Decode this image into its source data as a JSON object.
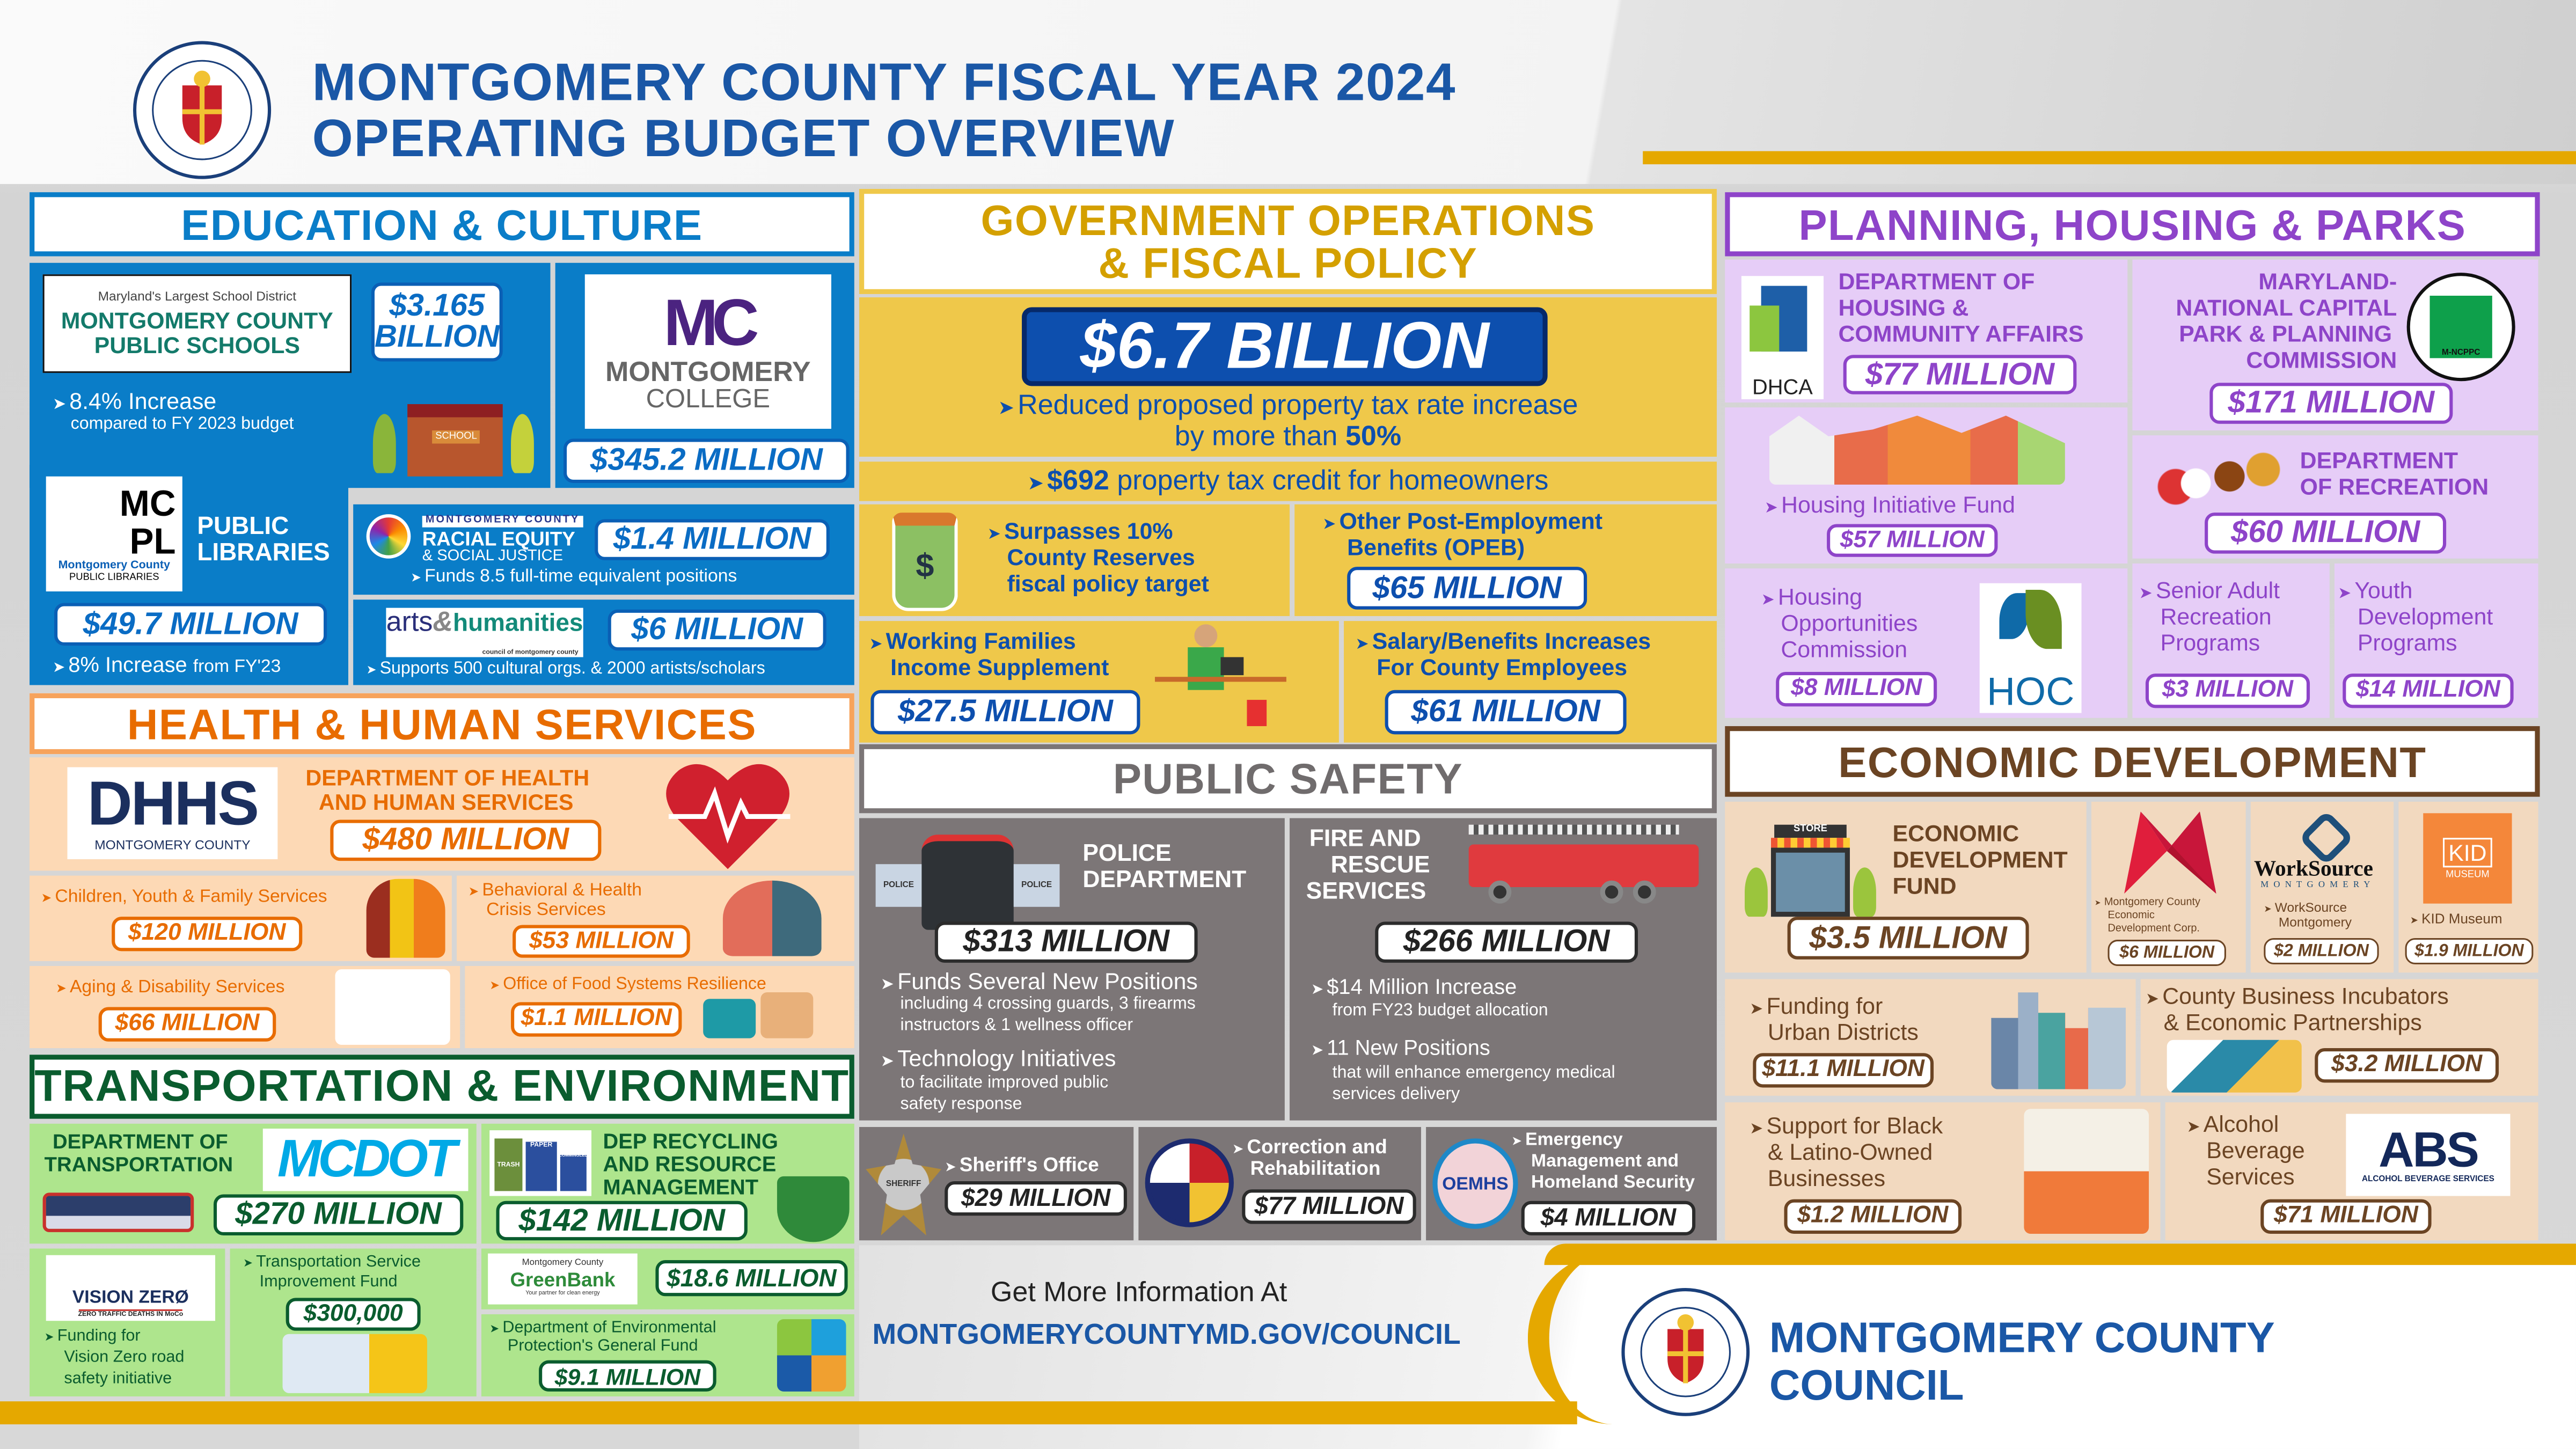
{
  "header": {
    "title_line1": "MONTGOMERY COUNTY FISCAL YEAR 2024",
    "title_line2": "OPERATING BUDGET OVERVIEW",
    "seal_text": "MONTGOMERY COUNTY MARYLAND 1776"
  },
  "colors": {
    "title": "#1a57a6",
    "education": "#0a7dc8",
    "government": "#efc84a",
    "planning": "#e6cdf7",
    "health": "#fdd9b5",
    "transportation": "#aee58d",
    "public_safety": "#7c7676",
    "economic": "#f2d9bf",
    "footer_gold": "#e5a800"
  },
  "education": {
    "title": "EDUCATION & CULTURE",
    "mcps": {
      "tagline": "Maryland's Largest School District",
      "logo_line1": "MONTGOMERY COUNTY",
      "logo_line2": "PUBLIC SCHOOLS",
      "value_line1": "$3.165",
      "value_line2": "BILLION",
      "note": "8.4% Increase",
      "subnote": "compared to FY 2023 budget",
      "school_sign": "SCHOOL"
    },
    "college": {
      "logo_mark": "MC",
      "logo_line1": "MONTGOMERY",
      "logo_line2": "COLLEGE",
      "value": "$345.2 MILLION"
    },
    "libraries": {
      "logo_mark1": "MC",
      "logo_mark2": "PL",
      "logo_sub1": "Montgomery County",
      "logo_sub2": "PUBLIC LIBRARIES",
      "label_line1": "PUBLIC",
      "label_line2": "LIBRARIES",
      "value": "$49.7 MILLION",
      "note": "8% Increase",
      "note_suffix": "from FY'23"
    },
    "racial_equity": {
      "logo_line1": "MONTGOMERY COUNTY",
      "logo_line2": "RACIAL EQUITY",
      "logo_line3": "& SOCIAL JUSTICE",
      "value": "$1.4 MILLION",
      "note": "Funds 8.5 full-time equivalent positions"
    },
    "arts": {
      "logo_text1": "arts",
      "logo_text2": "humanities",
      "logo_sub": "council of montgomery county",
      "value": "$6 MILLION",
      "note": "Supports 500 cultural orgs. & 2000 artists/scholars"
    }
  },
  "health": {
    "title": "HEALTH & HUMAN SERVICES",
    "dhhs": {
      "logo_mark": "DHHS",
      "logo_sub": "MONTGOMERY COUNTY",
      "label_line1": "DEPARTMENT OF HEALTH",
      "label_line2": "AND HUMAN SERVICES",
      "value": "$480 MILLION"
    },
    "children": {
      "label": "Children, Youth & Family Services",
      "value": "$120 MILLION"
    },
    "behavioral": {
      "label_line1": "Behavioral & Health",
      "label_line2": "Crisis Services",
      "value": "$53 MILLION"
    },
    "aging": {
      "label": "Aging & Disability Services",
      "value": "$66 MILLION"
    },
    "food": {
      "label": "Office of Food Systems Resilience",
      "value": "$1.1 MILLION"
    }
  },
  "transportation": {
    "title": "TRANSPORTATION & ENVIRONMENT",
    "mcdot": {
      "label_line1": "DEPARTMENT OF",
      "label_line2": "TRANSPORTATION",
      "logo": "MCDOT",
      "value": "$270 MILLION"
    },
    "recycling": {
      "label_line1": "DEP RECYCLING",
      "label_line2": "AND RESOURCE",
      "label_line3": "MANAGEMENT",
      "value": "$142 MILLION",
      "bin1": "TRASH",
      "bin2": "PAPER",
      "bin3": "COMMINGLED"
    },
    "vision_zero": {
      "logo": "VISION ZERØ",
      "logo_sub": "ZERO TRAFFIC DEATHS IN MoCo",
      "label_line1": "Funding for",
      "label_line2": "Vision Zero road",
      "label_line3": "safety initiative"
    },
    "tsif": {
      "label_line1": "Transportation Service",
      "label_line2": "Improvement Fund",
      "value": "$300,000"
    },
    "greenbank": {
      "logo_top": "Montgomery County",
      "logo_main": "GreenBank",
      "logo_sub": "Your partner for clean energy",
      "value": "$18.6 MILLION"
    },
    "dep_general": {
      "label_line1": "Department of Environmental",
      "label_line2": "Protection's General Fund",
      "value": "$9.1 MILLION"
    }
  },
  "government": {
    "title_line1": "GOVERNMENT OPERATIONS",
    "title_line2": "& FISCAL POLICY",
    "total": "$6.7 BILLION",
    "tax_line1": "Reduced proposed property tax rate increase",
    "tax_line2_prefix": "by more than ",
    "tax_line2_bold": "50%",
    "credit_bold": "$692",
    "credit_rest": " property tax credit for homeowners",
    "reserves": {
      "line1": "Surpasses 10%",
      "line2": "County Reserves",
      "line3": "fiscal policy target"
    },
    "opeb": {
      "line1": "Other Post-Employment",
      "line2": "Benefits (OPEB)",
      "value": "$65 MILLION"
    },
    "wfis": {
      "line1": "Working Families",
      "line2": "Income Supplement",
      "value": "$27.5 MILLION"
    },
    "salary": {
      "line1": "Salary/Benefits Increases",
      "line2": "For County Employees",
      "value": "$61 MILLION"
    }
  },
  "public_safety": {
    "title": "PUBLIC SAFETY",
    "police": {
      "label_line1": "POLICE",
      "label_line2": "DEPARTMENT",
      "value": "$313 MILLION",
      "b1_title": "Funds Several New Positions",
      "b1_line1": "including 4 crossing guards, 3 firearms",
      "b1_line2": "instructors & 1 wellness officer",
      "b2_title": "Technology Initiatives",
      "b2_line1": "to facilitate improved public",
      "b2_line2": "safety response",
      "car_text": "POLICE"
    },
    "fire": {
      "label_line1": "FIRE AND",
      "label_line2": "RESCUE",
      "label_line3": "SERVICES",
      "value": "$266 MILLION",
      "b1_title": "$14 Million Increase",
      "b1_line1": "from FY23 budget allocation",
      "b2_title": "11 New Positions",
      "b2_line1": "that will enhance emergency medical",
      "b2_line2": "services delivery"
    },
    "sheriff": {
      "label": "Sheriff's Office",
      "value": "$29 MILLION",
      "badge": "SHERIFF"
    },
    "correction": {
      "label_line1": "Correction and",
      "label_line2": "Rehabilitation",
      "value": "$77 MILLION"
    },
    "oemhs": {
      "label_line1": "Emergency",
      "label_line2": "Management and",
      "label_line3": "Homeland Security",
      "value": "$4 MILLION",
      "logo": "OEMHS"
    }
  },
  "planning": {
    "title": "PLANNING, HOUSING & PARKS",
    "dhca": {
      "logo": "DHCA",
      "label_line1": "DEPARTMENT OF",
      "label_line2": "HOUSING &",
      "label_line3": "COMMUNITY AFFAIRS",
      "value": "$77 MILLION"
    },
    "mncppc": {
      "label_line1": "MARYLAND-",
      "label_line2": "NATIONAL CAPITAL",
      "label_line3": "PARK & PLANNING",
      "label_line4": "COMMISSION",
      "logo": "M-NCPPC",
      "value": "$171 MILLION"
    },
    "hif": {
      "label": "Housing Initiative Fund",
      "value": "$57 MILLION"
    },
    "recreation": {
      "label_line1": "DEPARTMENT",
      "label_line2": "OF RECREATION",
      "value": "$60 MILLION"
    },
    "hoc": {
      "label_line1": "Housing",
      "label_line2": "Opportunities",
      "label_line3": "Commission",
      "value": "$8 MILLION",
      "logo": "HOC"
    },
    "senior": {
      "label_line1": "Senior Adult",
      "label_line2": "Recreation",
      "label_line3": "Programs",
      "value": "$3 MILLION"
    },
    "youth": {
      "label_line1": "Youth",
      "label_line2": "Development",
      "label_line3": "Programs",
      "value": "$14 MILLION"
    }
  },
  "economic": {
    "title": "ECONOMIC DEVELOPMENT",
    "edf": {
      "label_line1": "ECONOMIC",
      "label_line2": "DEVELOPMENT",
      "label_line3": "FUND",
      "value": "$3.5 MILLION",
      "store_sign": "STORE"
    },
    "mcedc": {
      "label_line1": "Montgomery County",
      "label_line2": "Economic",
      "label_line3": "Development Corp.",
      "value": "$6 MILLION"
    },
    "worksource": {
      "logo": "WorkSource",
      "logo_sub": "MONTGOMERY",
      "label_line1": "WorkSource",
      "label_line2": "Montgomery",
      "value": "$2 MILLION"
    },
    "kid": {
      "logo": "KID",
      "logo_sub": "MUSEUM",
      "label": "KID Museum",
      "value": "$1.9 MILLION"
    },
    "urban": {
      "label_line1": "Funding for",
      "label_line2": "Urban Districts",
      "value": "$11.1 MILLION"
    },
    "incubators": {
      "label_line1": "County Business Incubators",
      "label_line2": "& Economic Partnerships",
      "value": "$3.2 MILLION"
    },
    "black_latino": {
      "label_line1": "Support for Black",
      "label_line2": "& Latino-Owned",
      "label_line3": "Businesses",
      "value": "$1.2 MILLION"
    },
    "abs": {
      "logo": "ABS",
      "logo_sub": "ALCOHOL BEVERAGE SERVICES",
      "label_line1": "Alcohol",
      "label_line2": "Beverage",
      "label_line3": "Services",
      "value": "$71 MILLION"
    }
  },
  "footer": {
    "info": "Get More Information At",
    "url": "MONTGOMERYCOUNTYMD.GOV/COUNCIL",
    "council_line1": "MONTGOMERY COUNTY",
    "council_line2": "COUNCIL"
  }
}
